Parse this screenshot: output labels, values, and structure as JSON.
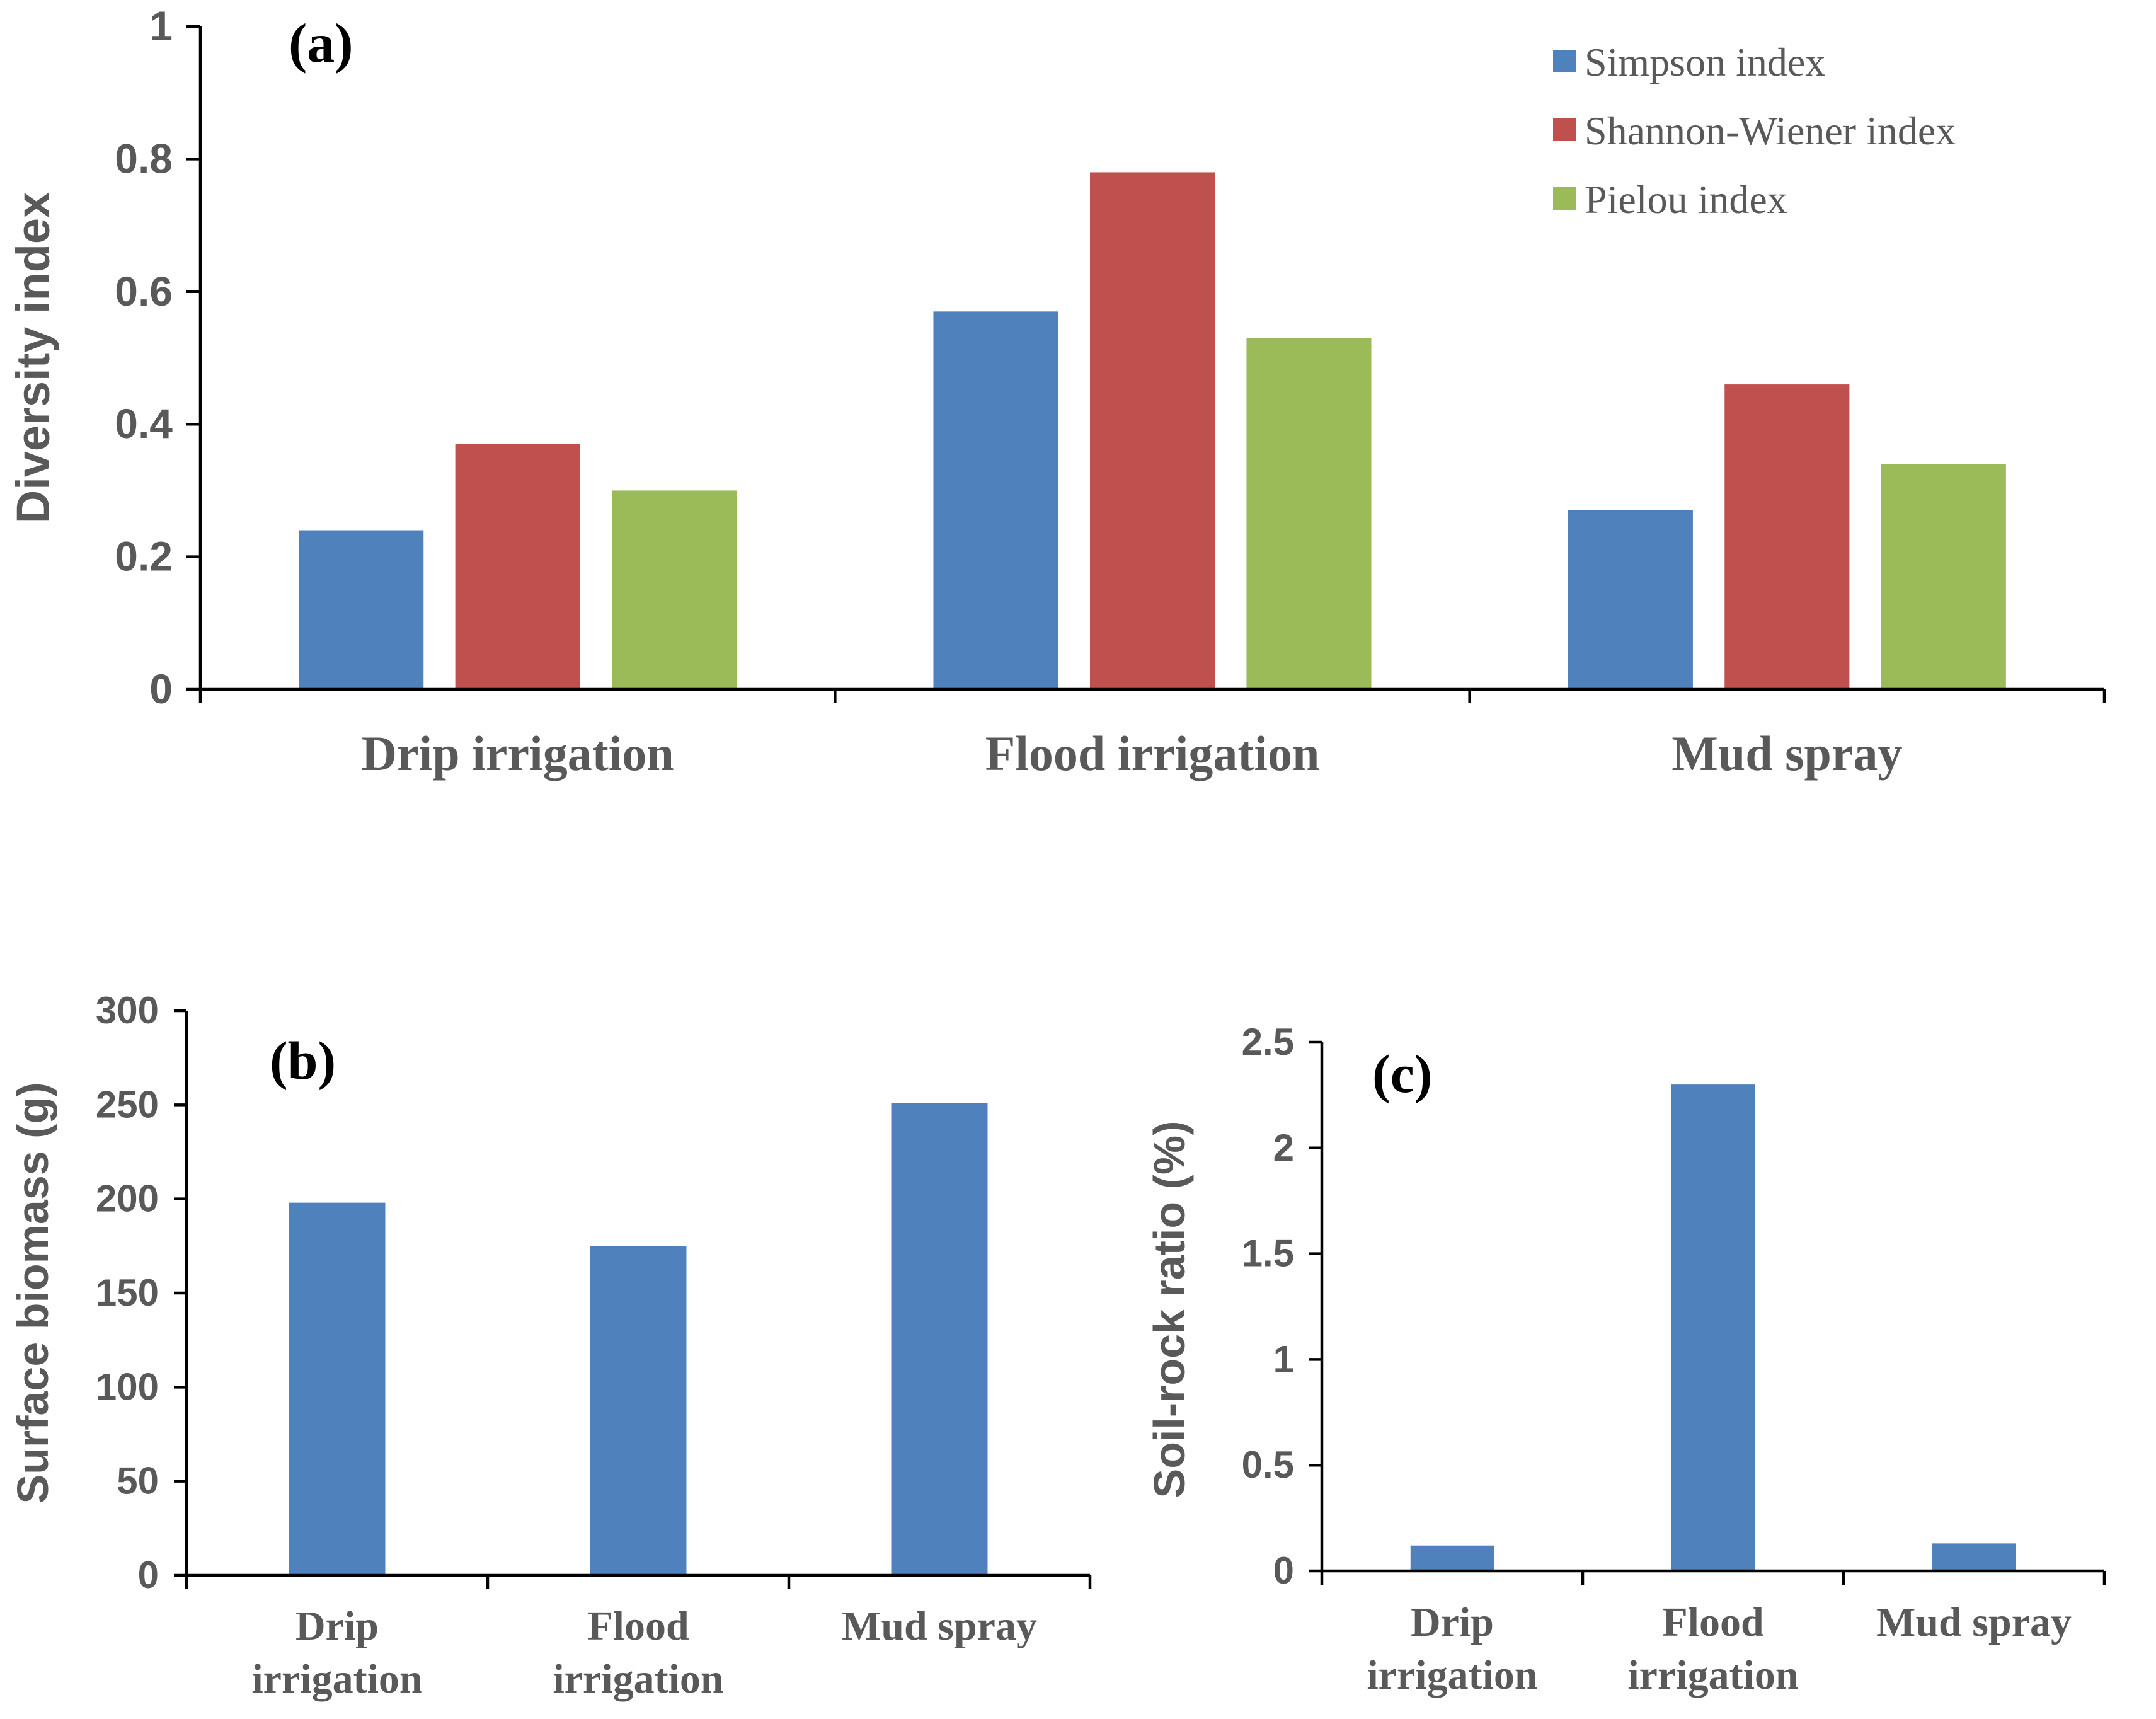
{
  "chart_data": [
    {
      "panel": "(a)",
      "type": "bar",
      "title": "",
      "xlabel": "",
      "ylabel": "Diversity index",
      "ylim": [
        0,
        1
      ],
      "yticks": [
        0,
        0.2,
        0.4,
        0.6,
        0.8,
        1
      ],
      "ytick_labels": [
        "0",
        "0.2",
        "0.4",
        "0.6",
        "0.8",
        "1"
      ],
      "categories": [
        "Drip irrigation",
        "Flood irrigation",
        "Mud spray"
      ],
      "series": [
        {
          "name": "Simpson index",
          "color": "#4F81BD",
          "values": [
            0.24,
            0.57,
            0.27
          ]
        },
        {
          "name": "Shannon-Wiener index",
          "color": "#C0504D",
          "values": [
            0.37,
            0.78,
            0.46
          ]
        },
        {
          "name": "Pielou index",
          "color": "#9BBB59",
          "values": [
            0.3,
            0.53,
            0.34
          ]
        }
      ],
      "legend": "top-right",
      "grid": false
    },
    {
      "panel": "(b)",
      "type": "bar",
      "title": "",
      "xlabel": "",
      "ylabel": "Surface biomass (g)",
      "ylim": [
        0,
        300
      ],
      "yticks": [
        0,
        50,
        100,
        150,
        200,
        250,
        300
      ],
      "ytick_labels": [
        "0",
        "50",
        "100",
        "150",
        "200",
        "250",
        "300"
      ],
      "categories": [
        "Drip irrigation",
        "Flood irrigation",
        "Mud spray"
      ],
      "category_lines": [
        [
          "Drip",
          "irrigation"
        ],
        [
          "Flood",
          "irrigation"
        ],
        [
          "Mud spray"
        ]
      ],
      "series": [
        {
          "name": "Surface biomass",
          "color": "#4F81BD",
          "values": [
            198,
            175,
            251
          ]
        }
      ],
      "grid": false
    },
    {
      "panel": "(c)",
      "type": "bar",
      "title": "",
      "xlabel": "",
      "ylabel": "Soil-rock ratio (%)",
      "ylim": [
        0,
        2.5
      ],
      "yticks": [
        0,
        0.5,
        1,
        1.5,
        2,
        2.5
      ],
      "ytick_labels": [
        "0",
        "0.5",
        "1",
        "1.5",
        "2",
        "2.5"
      ],
      "categories": [
        "Drip irrigation",
        "Flood irrigation",
        "Mud spray"
      ],
      "category_lines": [
        [
          "Drip",
          "irrigation"
        ],
        [
          "Flood",
          "irrigation"
        ],
        [
          "Mud spray"
        ]
      ],
      "series": [
        {
          "name": "Soil-rock ratio",
          "color": "#4F81BD",
          "values": [
            0.12,
            2.3,
            0.13
          ]
        }
      ],
      "grid": false
    }
  ]
}
